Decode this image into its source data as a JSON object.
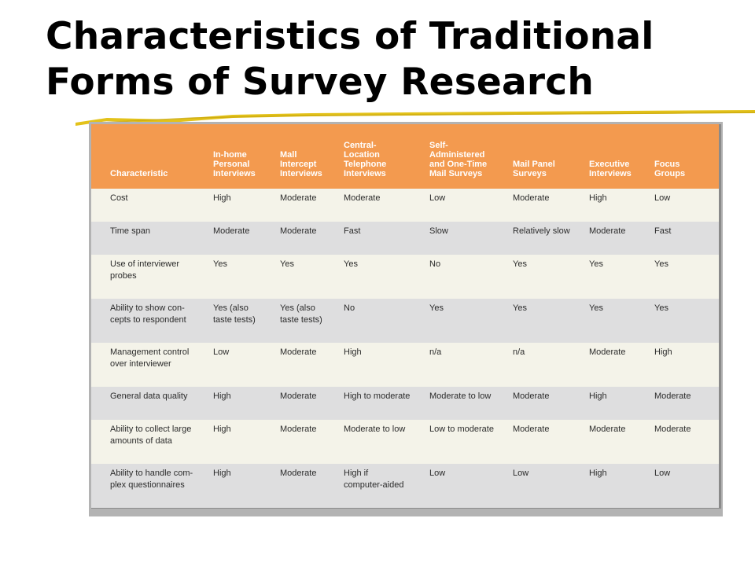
{
  "title_line1": "Characteristics of Traditional",
  "title_line2": "Forms of Survey Research",
  "colors": {
    "header_bg": "#f39a4f",
    "row_light": "#f4f3e9",
    "row_gray": "#dededf",
    "rule": "#e3c21a"
  },
  "table": {
    "headers": [
      "Characteristic",
      "In-home\nPersonal\nInterviews",
      "Mall\nIntercept\nInterviews",
      "Central-\nLocation\nTelephone\nInterviews",
      "Self-\nAdministered\nand One-Time\nMail Surveys",
      "Mail Panel\nSurveys",
      "Executive\nInterviews",
      "Focus\nGroups"
    ],
    "rows": [
      [
        "Cost",
        "High",
        "Moderate",
        "Moderate",
        "Low",
        "Moderate",
        "High",
        "Low"
      ],
      [
        "Time span",
        "Moderate",
        "Moderate",
        "Fast",
        "Slow",
        "Relatively slow",
        "Moderate",
        "Fast"
      ],
      [
        "Use of interviewer\nprobes",
        "Yes",
        "Yes",
        "Yes",
        "No",
        "Yes",
        "Yes",
        "Yes"
      ],
      [
        "Ability to show con-\ncepts to respondent",
        "Yes (also\ntaste tests)",
        "Yes (also\ntaste tests)",
        "No",
        "Yes",
        "Yes",
        "Yes",
        "Yes"
      ],
      [
        "Management control\nover interviewer",
        "Low",
        "Moderate",
        "High",
        "n/a",
        "n/a",
        "Moderate",
        "High"
      ],
      [
        "General data quality",
        "High",
        "Moderate",
        "High to moderate",
        "Moderate to low",
        "Moderate",
        "High",
        "Moderate"
      ],
      [
        "Ability to collect large\namounts of data",
        "High",
        "Moderate",
        "Moderate to low",
        "Low to moderate",
        "Moderate",
        "Moderate",
        "Moderate"
      ],
      [
        "Ability to handle com-\nplex questionnaires",
        "High",
        "Moderate",
        "High if\ncomputer-aided",
        "Low",
        "Low",
        "High",
        "Low"
      ]
    ]
  }
}
